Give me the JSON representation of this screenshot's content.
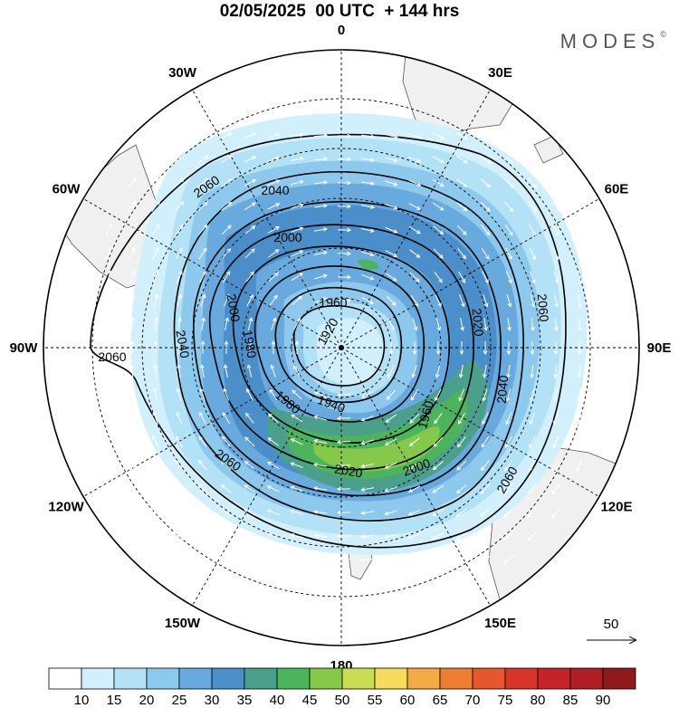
{
  "title": "02/05/2025  00 UTC  + 144 hrs",
  "brand": "MODES",
  "brand_mark": "©",
  "longitude_labels": [
    {
      "text": "0",
      "lon": 0
    },
    {
      "text": "30E",
      "lon": 30
    },
    {
      "text": "60E",
      "lon": 60
    },
    {
      "text": "90E",
      "lon": 90
    },
    {
      "text": "120E",
      "lon": 120
    },
    {
      "text": "150E",
      "lon": 150
    },
    {
      "text": "180",
      "lon": 180
    },
    {
      "text": "150W",
      "lon": -150
    },
    {
      "text": "120W",
      "lon": -120
    },
    {
      "text": "90W",
      "lon": -90
    },
    {
      "text": "60W",
      "lon": -60
    },
    {
      "text": "30W",
      "lon": -30
    }
  ],
  "contour_labels": [
    "1920",
    "1940",
    "1960",
    "1960",
    "1980",
    "1980",
    "2000",
    "2000",
    "2000",
    "2020",
    "2020",
    "2040",
    "2040",
    "2040",
    "2060",
    "2060",
    "2060",
    "2060",
    "2060"
  ],
  "vector_reference": {
    "label": "50"
  },
  "colorbar": {
    "labels": [
      "10",
      "15",
      "20",
      "25",
      "30",
      "35",
      "40",
      "45",
      "50",
      "55",
      "60",
      "65",
      "70",
      "75",
      "80",
      "85",
      "90"
    ],
    "colors": [
      "#ffffff",
      "#d2f0fb",
      "#b3e1f5",
      "#8cc9ec",
      "#68aadd",
      "#4a8fc9",
      "#4aa08a",
      "#4cb45a",
      "#86c84a",
      "#c9dd53",
      "#f6dc5a",
      "#f4ab45",
      "#ee7d34",
      "#e5582e",
      "#d7352b",
      "#c42428",
      "#ad1f24",
      "#8e1a1c"
    ]
  }
}
